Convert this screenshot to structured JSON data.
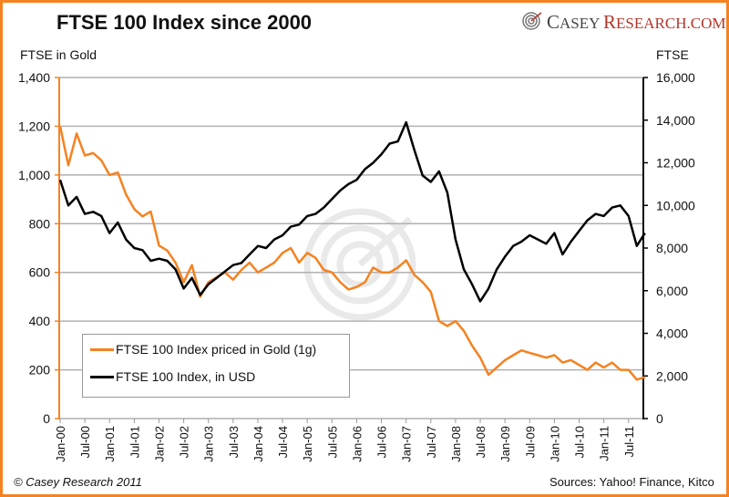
{
  "header": {
    "title": "FTSE 100 Index since 2000",
    "brand_first": "C",
    "brand_first_rest": "ASEY ",
    "brand_second": "R",
    "brand_second_rest": "ESEARCH.COM",
    "brand_icon": "casey-research-target-logo"
  },
  "footer": {
    "copyright": "© Casey Research 2011",
    "sources": "Sources: Yahoo! Finance, Kitco"
  },
  "colors": {
    "gold_series": "#f58220",
    "usd_series": "#000000",
    "frame": "#f58220",
    "grid": "#b0b0b0"
  },
  "chart_data": {
    "type": "line",
    "title": "FTSE 100 Index since 2000",
    "xlabel": "",
    "ylabel_left": "FTSE in Gold",
    "ylabel_right": "FTSE",
    "ylim_left": [
      0,
      1400
    ],
    "ylim_right": [
      0,
      16000
    ],
    "yticks_left": [
      "0",
      "200",
      "400",
      "600",
      "800",
      "1,000",
      "1,200",
      "1,400"
    ],
    "yticks_right": [
      "0",
      "2,000",
      "4,000",
      "6,000",
      "8,000",
      "10,000",
      "12,000",
      "14,000",
      "16,000"
    ],
    "x_tick_labels": [
      "Jan-00",
      "Jul-00",
      "Jan-01",
      "Jul-01",
      "Jan-02",
      "Jul-02",
      "Jan-03",
      "Jul-03",
      "Jan-04",
      "Jul-04",
      "Jan-05",
      "Jul-05",
      "Jan-06",
      "Jul-06",
      "Jan-07",
      "Jul-07",
      "Jan-08",
      "Jul-08",
      "Jan-09",
      "Jul-09",
      "Jan-10",
      "Jul-10",
      "Jan-11",
      "Jul-11"
    ],
    "grid": true,
    "legend_position": "bottom-left",
    "x_months_from_jan2000": [
      0,
      2,
      4,
      6,
      8,
      10,
      12,
      14,
      16,
      18,
      20,
      22,
      24,
      26,
      28,
      30,
      32,
      34,
      36,
      38,
      40,
      42,
      44,
      46,
      48,
      50,
      52,
      54,
      56,
      58,
      60,
      62,
      64,
      66,
      68,
      70,
      72,
      74,
      76,
      78,
      80,
      82,
      84,
      86,
      88,
      90,
      92,
      94,
      96,
      98,
      100,
      102,
      104,
      106,
      108,
      110,
      112,
      114,
      116,
      118,
      120,
      122,
      124,
      126,
      128,
      130,
      132,
      134,
      136,
      138,
      140,
      142
    ],
    "series": [
      {
        "name": "FTSE 100 Index priced in Gold (1g)",
        "axis": "left",
        "values": [
          1200,
          1040,
          1170,
          1080,
          1090,
          1060,
          1000,
          1010,
          920,
          860,
          830,
          850,
          710,
          690,
          640,
          560,
          630,
          500,
          560,
          580,
          600,
          570,
          610,
          640,
          600,
          620,
          640,
          680,
          700,
          640,
          680,
          660,
          610,
          600,
          560,
          530,
          540,
          560,
          620,
          600,
          600,
          620,
          650,
          590,
          560,
          520,
          400,
          380,
          400,
          360,
          300,
          250,
          180,
          210,
          240,
          260,
          280,
          270,
          260,
          250,
          260,
          230,
          240,
          220,
          200,
          230,
          210,
          230,
          200,
          200,
          160,
          170
        ],
        "ylim": [
          0,
          1400
        ]
      },
      {
        "name": "FTSE 100 Index, in USD",
        "axis": "right",
        "values": [
          11200,
          10000,
          10400,
          9600,
          9700,
          9500,
          8700,
          9200,
          8400,
          8000,
          7900,
          7400,
          7500,
          7400,
          7000,
          6100,
          6600,
          5800,
          6300,
          6600,
          6900,
          7200,
          7300,
          7700,
          8100,
          8000,
          8400,
          8600,
          9000,
          9100,
          9500,
          9600,
          9900,
          10300,
          10700,
          11000,
          11200,
          11700,
          12000,
          12400,
          12900,
          13000,
          13900,
          12600,
          11400,
          11100,
          11600,
          10600,
          8400,
          7000,
          6300,
          5500,
          6100,
          7000,
          7600,
          8100,
          8300,
          8600,
          8400,
          8200,
          8700,
          7700,
          8300,
          8800,
          9300,
          9600,
          9500,
          9900,
          10000,
          9500,
          8100,
          8700
        ]
      }
    ]
  },
  "legend": {
    "items": [
      {
        "label": "FTSE 100 Index priced in Gold (1g)"
      },
      {
        "label": "FTSE 100 Index, in USD"
      }
    ]
  }
}
